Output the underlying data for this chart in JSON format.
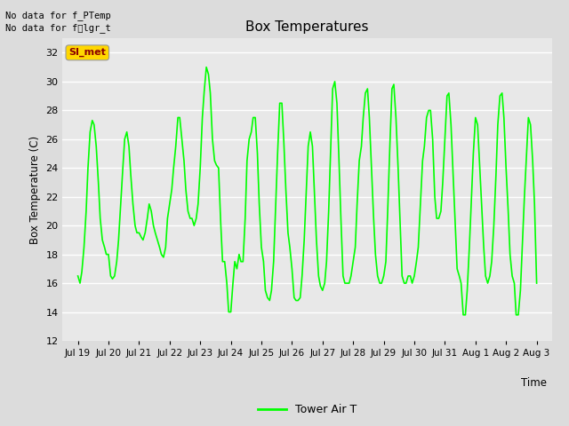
{
  "title": "Box Temperatures",
  "ylabel": "Box Temperature (C)",
  "xlabel": "Time",
  "line_color": "#00FF00",
  "line_label": "Tower Air T",
  "bg_color": "#E8E8E8",
  "fig_bg": "#DCDCDC",
  "ylim": [
    12,
    33
  ],
  "yticks": [
    12,
    14,
    16,
    18,
    20,
    22,
    24,
    26,
    28,
    30,
    32
  ],
  "no_data_text1": "No data for f_PTemp",
  "no_data_text2": "No data for f͟lgr_t",
  "si_met_label": "SI_met",
  "x_tick_labels": [
    "Jul 19",
    "Jul 20",
    "Jul 21",
    "Jul 22",
    "Jul 23",
    "Jul 24",
    "Jul 25",
    "Jul 26",
    "Jul 27",
    "Jul 28",
    "Jul 29",
    "Jul 30",
    "Jul 31",
    "Aug 1",
    "Aug 2",
    "Aug 3"
  ],
  "time_values": [
    0,
    1,
    2,
    3,
    4,
    5,
    6,
    7,
    8,
    9,
    10,
    11,
    12,
    13,
    14,
    15
  ],
  "temperature_x": [
    0.0,
    0.07,
    0.13,
    0.2,
    0.27,
    0.33,
    0.4,
    0.47,
    0.53,
    0.6,
    0.67,
    0.73,
    0.8,
    0.87,
    0.93,
    1.0,
    1.07,
    1.13,
    1.2,
    1.27,
    1.33,
    1.4,
    1.47,
    1.53,
    1.6,
    1.67,
    1.73,
    1.8,
    1.87,
    1.93,
    2.0,
    2.07,
    2.13,
    2.2,
    2.27,
    2.33,
    2.4,
    2.47,
    2.53,
    2.6,
    2.67,
    2.73,
    2.8,
    2.87,
    2.93,
    3.0,
    3.07,
    3.13,
    3.2,
    3.27,
    3.33,
    3.4,
    3.47,
    3.53,
    3.6,
    3.67,
    3.73,
    3.8,
    3.87,
    3.93,
    4.0,
    4.07,
    4.13,
    4.2,
    4.27,
    4.33,
    4.4,
    4.47,
    4.53,
    4.6,
    4.67,
    4.73,
    4.8,
    4.87,
    4.93,
    5.0,
    5.07,
    5.13,
    5.2,
    5.27,
    5.33,
    5.4,
    5.47,
    5.53,
    5.6,
    5.67,
    5.73,
    5.8,
    5.87,
    5.93,
    6.0,
    6.07,
    6.13,
    6.2,
    6.27,
    6.33,
    6.4,
    6.47,
    6.53,
    6.6,
    6.67,
    6.73,
    6.8,
    6.87,
    6.93,
    7.0,
    7.07,
    7.13,
    7.2,
    7.27,
    7.33,
    7.4,
    7.47,
    7.53,
    7.6,
    7.67,
    7.73,
    7.8,
    7.87,
    7.93,
    8.0,
    8.07,
    8.13,
    8.2,
    8.27,
    8.33,
    8.4,
    8.47,
    8.53,
    8.6,
    8.67,
    8.73,
    8.8,
    8.87,
    8.93,
    9.0,
    9.07,
    9.13,
    9.2,
    9.27,
    9.33,
    9.4,
    9.47,
    9.53,
    9.6,
    9.67,
    9.73,
    9.8,
    9.87,
    9.93,
    10.0,
    10.07,
    10.13,
    10.2,
    10.27,
    10.33,
    10.4,
    10.47,
    10.53,
    10.6,
    10.67,
    10.73,
    10.8,
    10.87,
    10.93,
    11.0,
    11.07,
    11.13,
    11.2,
    11.27,
    11.33,
    11.4,
    11.47,
    11.53,
    11.6,
    11.67,
    11.73,
    11.8,
    11.87,
    11.93,
    12.0,
    12.07,
    12.13,
    12.2,
    12.27,
    12.33,
    12.4,
    12.47,
    12.53,
    12.6,
    12.67,
    12.73,
    12.8,
    12.87,
    12.93,
    13.0,
    13.07,
    13.13,
    13.2,
    13.27,
    13.33,
    13.4,
    13.47,
    13.53,
    13.6,
    13.67,
    13.73,
    13.8,
    13.87,
    13.93,
    14.0,
    14.07,
    14.13,
    14.2,
    14.27,
    14.33,
    14.4,
    14.47,
    14.53,
    14.6,
    14.67,
    14.73,
    14.8,
    14.87,
    14.93,
    15.0
  ],
  "temperature_y": [
    16.5,
    16.0,
    16.8,
    18.5,
    21.0,
    24.0,
    26.5,
    27.3,
    27.0,
    25.5,
    23.0,
    20.5,
    19.0,
    18.5,
    18.0,
    18.0,
    16.5,
    16.3,
    16.5,
    17.5,
    19.0,
    21.5,
    24.0,
    26.0,
    26.5,
    25.5,
    23.5,
    21.5,
    20.0,
    19.5,
    19.5,
    19.2,
    19.0,
    19.5,
    20.5,
    21.5,
    21.0,
    20.0,
    19.5,
    19.0,
    18.5,
    18.0,
    17.8,
    18.5,
    20.5,
    21.5,
    22.5,
    24.0,
    25.5,
    27.5,
    27.5,
    26.0,
    24.5,
    22.5,
    21.0,
    20.5,
    20.5,
    20.0,
    20.5,
    21.5,
    24.0,
    27.5,
    29.3,
    31.0,
    30.5,
    29.2,
    26.0,
    24.5,
    24.2,
    24.0,
    20.2,
    17.5,
    17.5,
    16.0,
    14.0,
    14.0,
    16.0,
    17.5,
    17.0,
    18.0,
    17.5,
    17.5,
    20.5,
    24.5,
    26.0,
    26.5,
    27.5,
    27.5,
    25.0,
    21.5,
    18.5,
    17.5,
    15.5,
    15.0,
    14.8,
    15.5,
    17.5,
    21.5,
    25.0,
    28.5,
    28.5,
    26.0,
    22.5,
    19.5,
    18.5,
    17.0,
    15.0,
    14.8,
    14.8,
    15.0,
    16.5,
    19.0,
    22.5,
    25.5,
    26.5,
    25.5,
    22.5,
    19.0,
    16.5,
    15.8,
    15.5,
    16.0,
    17.5,
    21.0,
    25.5,
    29.5,
    30.0,
    28.5,
    25.0,
    20.5,
    16.5,
    16.0,
    16.0,
    16.0,
    16.5,
    17.5,
    18.5,
    21.5,
    24.5,
    25.5,
    27.5,
    29.2,
    29.5,
    27.5,
    24.0,
    20.5,
    18.0,
    16.5,
    16.0,
    16.0,
    16.5,
    17.5,
    21.0,
    25.5,
    29.5,
    29.8,
    27.5,
    24.0,
    20.5,
    16.5,
    16.0,
    16.0,
    16.5,
    16.5,
    16.0,
    16.5,
    17.5,
    18.5,
    21.5,
    24.5,
    25.5,
    27.5,
    28.0,
    28.0,
    26.0,
    22.0,
    20.5,
    20.5,
    21.0,
    23.0,
    26.0,
    29.0,
    29.2,
    27.0,
    23.5,
    20.5,
    17.0,
    16.5,
    16.0,
    13.8,
    13.8,
    15.5,
    18.5,
    22.0,
    25.0,
    27.5,
    27.0,
    24.5,
    21.5,
    18.5,
    16.5,
    16.0,
    16.5,
    17.5,
    20.0,
    23.5,
    27.0,
    29.0,
    29.2,
    27.5,
    24.0,
    21.0,
    18.0,
    16.5,
    16.0,
    13.8,
    13.8,
    15.5,
    18.5,
    22.0,
    25.0,
    27.5,
    27.0,
    24.5,
    21.5,
    16.0
  ]
}
